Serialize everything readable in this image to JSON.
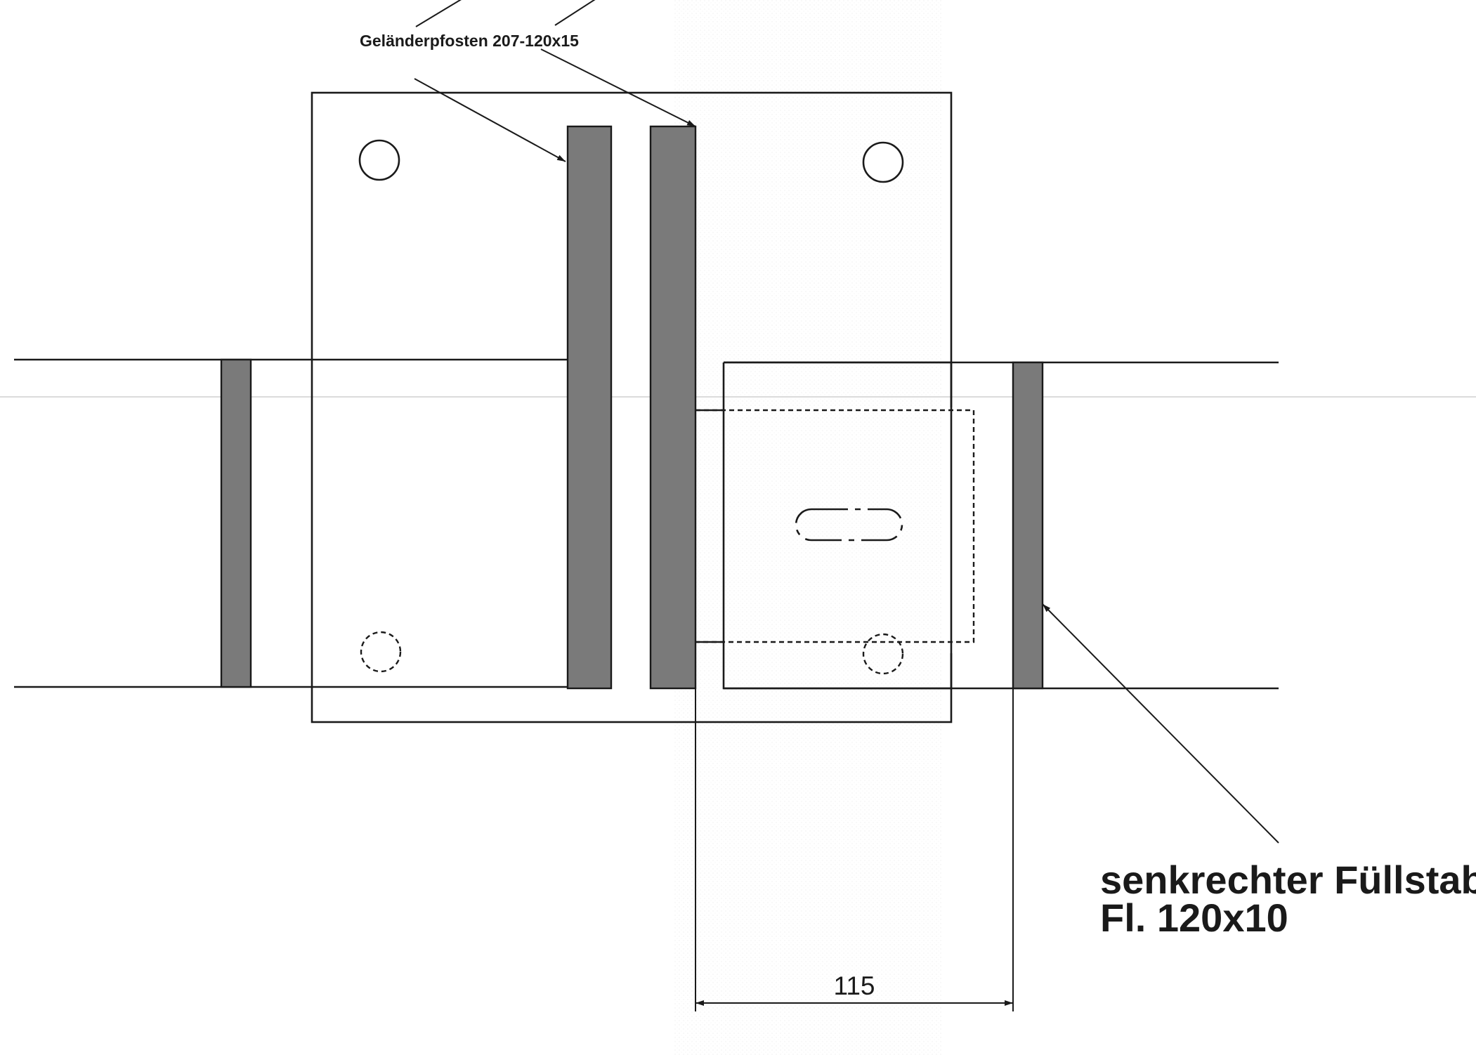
{
  "labels": {
    "post_callout": "Geländerpfosten 207-120x15",
    "bar_callout_line1": "senkrechter Füllstab",
    "bar_callout_line2": "Fl. 120x10"
  },
  "dimension": {
    "value": "115"
  },
  "colors": {
    "line": "#1a1a1a",
    "bar_fill": "#7a7a7a",
    "paper": "#ffffff",
    "grain": "#d6d6d6"
  }
}
